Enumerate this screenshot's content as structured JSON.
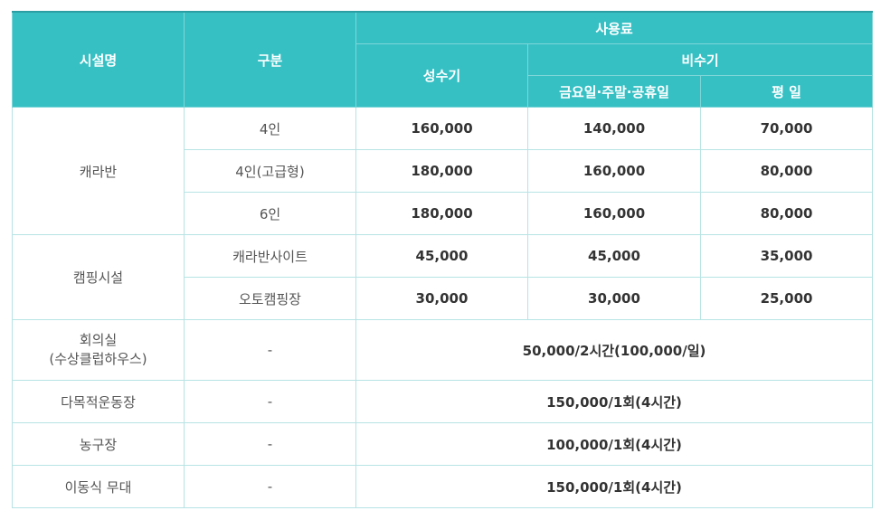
{
  "header": {
    "facility": "시설명",
    "category": "구분",
    "fee": "사용료",
    "peak": "성수기",
    "offpeak": "비수기",
    "weekend": "금요일·주말·공휴일",
    "weekday": "평 일"
  },
  "rows": {
    "caravan": {
      "name": "캐라반",
      "items": [
        {
          "category": "4인",
          "peak": "160,000",
          "weekend": "140,000",
          "weekday": "70,000"
        },
        {
          "category": "4인(고급형)",
          "peak": "180,000",
          "weekend": "160,000",
          "weekday": "80,000"
        },
        {
          "category": "6인",
          "peak": "180,000",
          "weekend": "160,000",
          "weekday": "80,000"
        }
      ]
    },
    "camping": {
      "name": "캠핑시설",
      "items": [
        {
          "category": "캐라반사이트",
          "peak": "45,000",
          "weekend": "45,000",
          "weekday": "35,000"
        },
        {
          "category": "오토캠핑장",
          "peak": "30,000",
          "weekend": "30,000",
          "weekday": "25,000"
        }
      ]
    },
    "meeting": {
      "name_line1": "회의실",
      "name_line2": "(수상클럽하우스)",
      "category": "-",
      "fee": "50,000/2시간(100,000/일)"
    },
    "field": {
      "name": "다목적운동장",
      "category": "-",
      "fee": "150,000/1회(4시간)"
    },
    "court": {
      "name": "농구장",
      "category": "-",
      "fee": "100,000/1회(4시간)"
    },
    "stage": {
      "name": "이동식 무대",
      "category": "-",
      "fee": "150,000/1회(4시간)"
    }
  }
}
